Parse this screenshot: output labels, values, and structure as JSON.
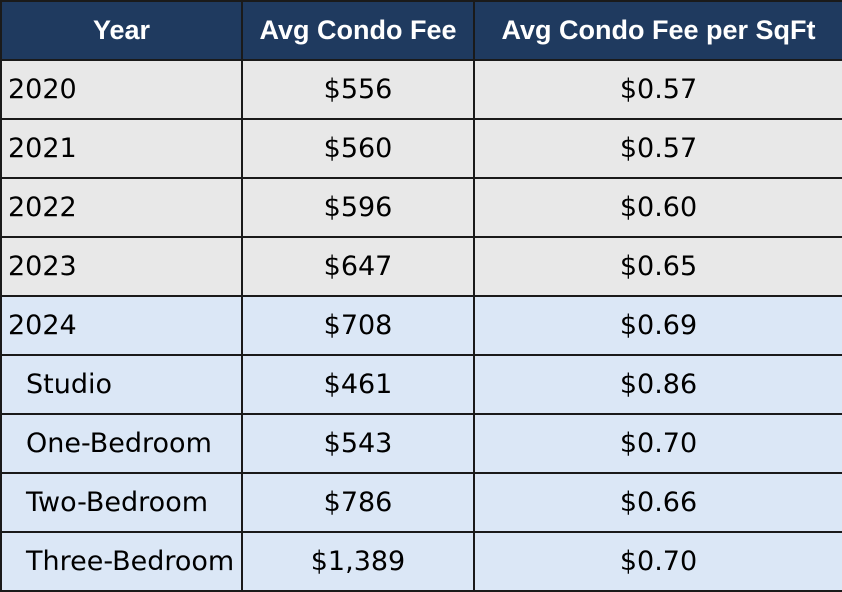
{
  "chart_data": {
    "type": "table",
    "columns": [
      "Year",
      "Avg Condo Fee",
      "Avg Condo Fee per SqFt"
    ],
    "rows": [
      {
        "label": "2020",
        "kind": "year",
        "fee": "$556",
        "fee_sqft": "$0.57"
      },
      {
        "label": "2021",
        "kind": "year",
        "fee": "$560",
        "fee_sqft": "$0.57"
      },
      {
        "label": "2022",
        "kind": "year",
        "fee": "$596",
        "fee_sqft": "$0.60"
      },
      {
        "label": "2023",
        "kind": "year",
        "fee": "$647",
        "fee_sqft": "$0.65"
      },
      {
        "label": "2024",
        "kind": "year2024",
        "fee": "$708",
        "fee_sqft": "$0.69"
      },
      {
        "label": "Studio",
        "kind": "sub",
        "fee": "$461",
        "fee_sqft": "$0.86"
      },
      {
        "label": "One-Bedroom",
        "kind": "sub",
        "fee": "$543",
        "fee_sqft": "$0.70"
      },
      {
        "label": "Two-Bedroom",
        "kind": "sub",
        "fee": "$786",
        "fee_sqft": "$0.66"
      },
      {
        "label": "Three-Bedroom",
        "kind": "sub",
        "fee": "$1,389",
        "fee_sqft": "$0.70"
      }
    ]
  },
  "colors": {
    "header_bg": "#1f3a5f",
    "header_text": "#ffffff",
    "year_row_bg": "#e8e8e8",
    "year_2024_row_bg": "#dbe7f6",
    "sub_row_bg": "#dbe7f6",
    "border": "#1a1a1a"
  }
}
